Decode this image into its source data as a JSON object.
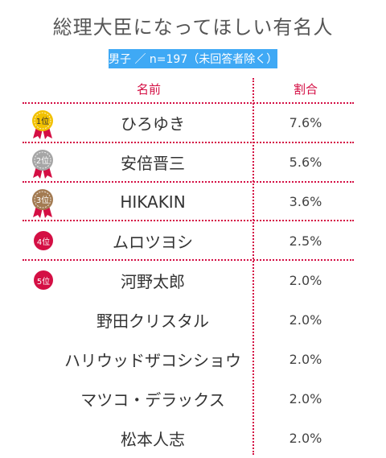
{
  "title": "総理大臣になってほしい有名人",
  "subtitle": "男子 ／ n=197（未回答者除く）",
  "headers": {
    "name": "名前",
    "percent": "割合"
  },
  "colors": {
    "accent": "#d40f44",
    "subtitle_bg": "#3fa9f5",
    "gold": "#f2c100",
    "silver": "#a6a6a6",
    "bronze": "#a37b52"
  },
  "icons": [
    "gold-medal-icon",
    "silver-medal-icon",
    "bronze-medal-icon",
    "rank-badge-icon"
  ],
  "chart_data": {
    "type": "table",
    "title": "総理大臣になってほしい有名人",
    "subtitle": "男子 ／ n=197（未回答者除く）",
    "columns": [
      "名前",
      "割合"
    ],
    "rows": [
      {
        "rank": "1位",
        "name": "ひろゆき",
        "percent": "7.6%",
        "value": 7.6
      },
      {
        "rank": "2位",
        "name": "安倍晋三",
        "percent": "5.6%",
        "value": 5.6
      },
      {
        "rank": "3位",
        "name": "HIKAKIN",
        "percent": "3.6%",
        "value": 3.6
      },
      {
        "rank": "4位",
        "name": "ムロツヨシ",
        "percent": "2.5%",
        "value": 2.5
      },
      {
        "rank": "5位",
        "name": "河野太郎",
        "percent": "2.0%",
        "value": 2.0
      },
      {
        "rank": "",
        "name": "野田クリスタル",
        "percent": "2.0%",
        "value": 2.0
      },
      {
        "rank": "",
        "name": "ハリウッドザコシショウ",
        "percent": "2.0%",
        "value": 2.0
      },
      {
        "rank": "",
        "name": "マツコ・デラックス",
        "percent": "2.0%",
        "value": 2.0
      },
      {
        "rank": "",
        "name": "松本人志",
        "percent": "2.0%",
        "value": 2.0
      }
    ]
  }
}
